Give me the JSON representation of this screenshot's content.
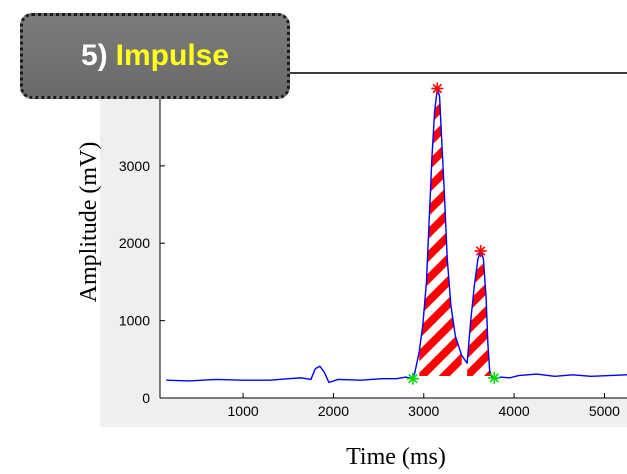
{
  "title_badge": {
    "number": "5)",
    "word": "Impulse"
  },
  "chart_data": {
    "type": "line",
    "title": "5) Impulse",
    "xlabel": "Time (ms)",
    "ylabel": "Amplitude (mV)",
    "xlim": [
      80,
      5250
    ],
    "ylim": [
      0,
      4200
    ],
    "xticks": [
      1000,
      2000,
      3000,
      4000,
      5000
    ],
    "yticks": [
      0,
      1000,
      2000,
      3000
    ],
    "xtick_labels": [
      "1000",
      "2000",
      "3000",
      "4000",
      "5000"
    ],
    "ytick_labels": [
      "0",
      "1000",
      "2000",
      "3000"
    ],
    "grid": false,
    "signal": {
      "color": "#0000ff",
      "x": [
        150,
        400,
        700,
        1000,
        1300,
        1500,
        1650,
        1750,
        1800,
        1850,
        1900,
        1950,
        2050,
        2300,
        2550,
        2700,
        2800,
        2870,
        2900,
        2950,
        2990,
        3030,
        3060,
        3090,
        3120,
        3150,
        3175,
        3200,
        3230,
        3260,
        3300,
        3350,
        3420,
        3480,
        3520,
        3560,
        3600,
        3630,
        3660,
        3690,
        3710,
        3730,
        3760,
        3800,
        3850,
        3950,
        4050,
        4250,
        4450,
        4650,
        4850,
        5050,
        5250
      ],
      "y": [
        230,
        220,
        240,
        230,
        230,
        250,
        260,
        240,
        380,
        410,
        330,
        200,
        240,
        230,
        250,
        250,
        270,
        250,
        320,
        600,
        950,
        1500,
        2300,
        3100,
        3700,
        4000,
        3900,
        3300,
        2600,
        1800,
        1200,
        800,
        550,
        450,
        1000,
        1450,
        1800,
        1900,
        1800,
        1300,
        700,
        350,
        250,
        250,
        270,
        260,
        290,
        310,
        280,
        300,
        280,
        290,
        300
      ]
    },
    "impulse_regions": [
      {
        "x_start": 2950,
        "x_end": 3420,
        "fill": "red-white hatch"
      },
      {
        "x_start": 3480,
        "x_end": 3770,
        "fill": "red-white hatch"
      }
    ],
    "peaks": {
      "marker": "*",
      "color": "#ff0000",
      "points": [
        {
          "x": 3150,
          "y": 4000
        },
        {
          "x": 3630,
          "y": 1900
        }
      ]
    },
    "onsets": {
      "marker": "*",
      "color": "#00dd00",
      "points": [
        {
          "x": 2880,
          "y": 250
        },
        {
          "x": 3780,
          "y": 260
        }
      ]
    }
  }
}
